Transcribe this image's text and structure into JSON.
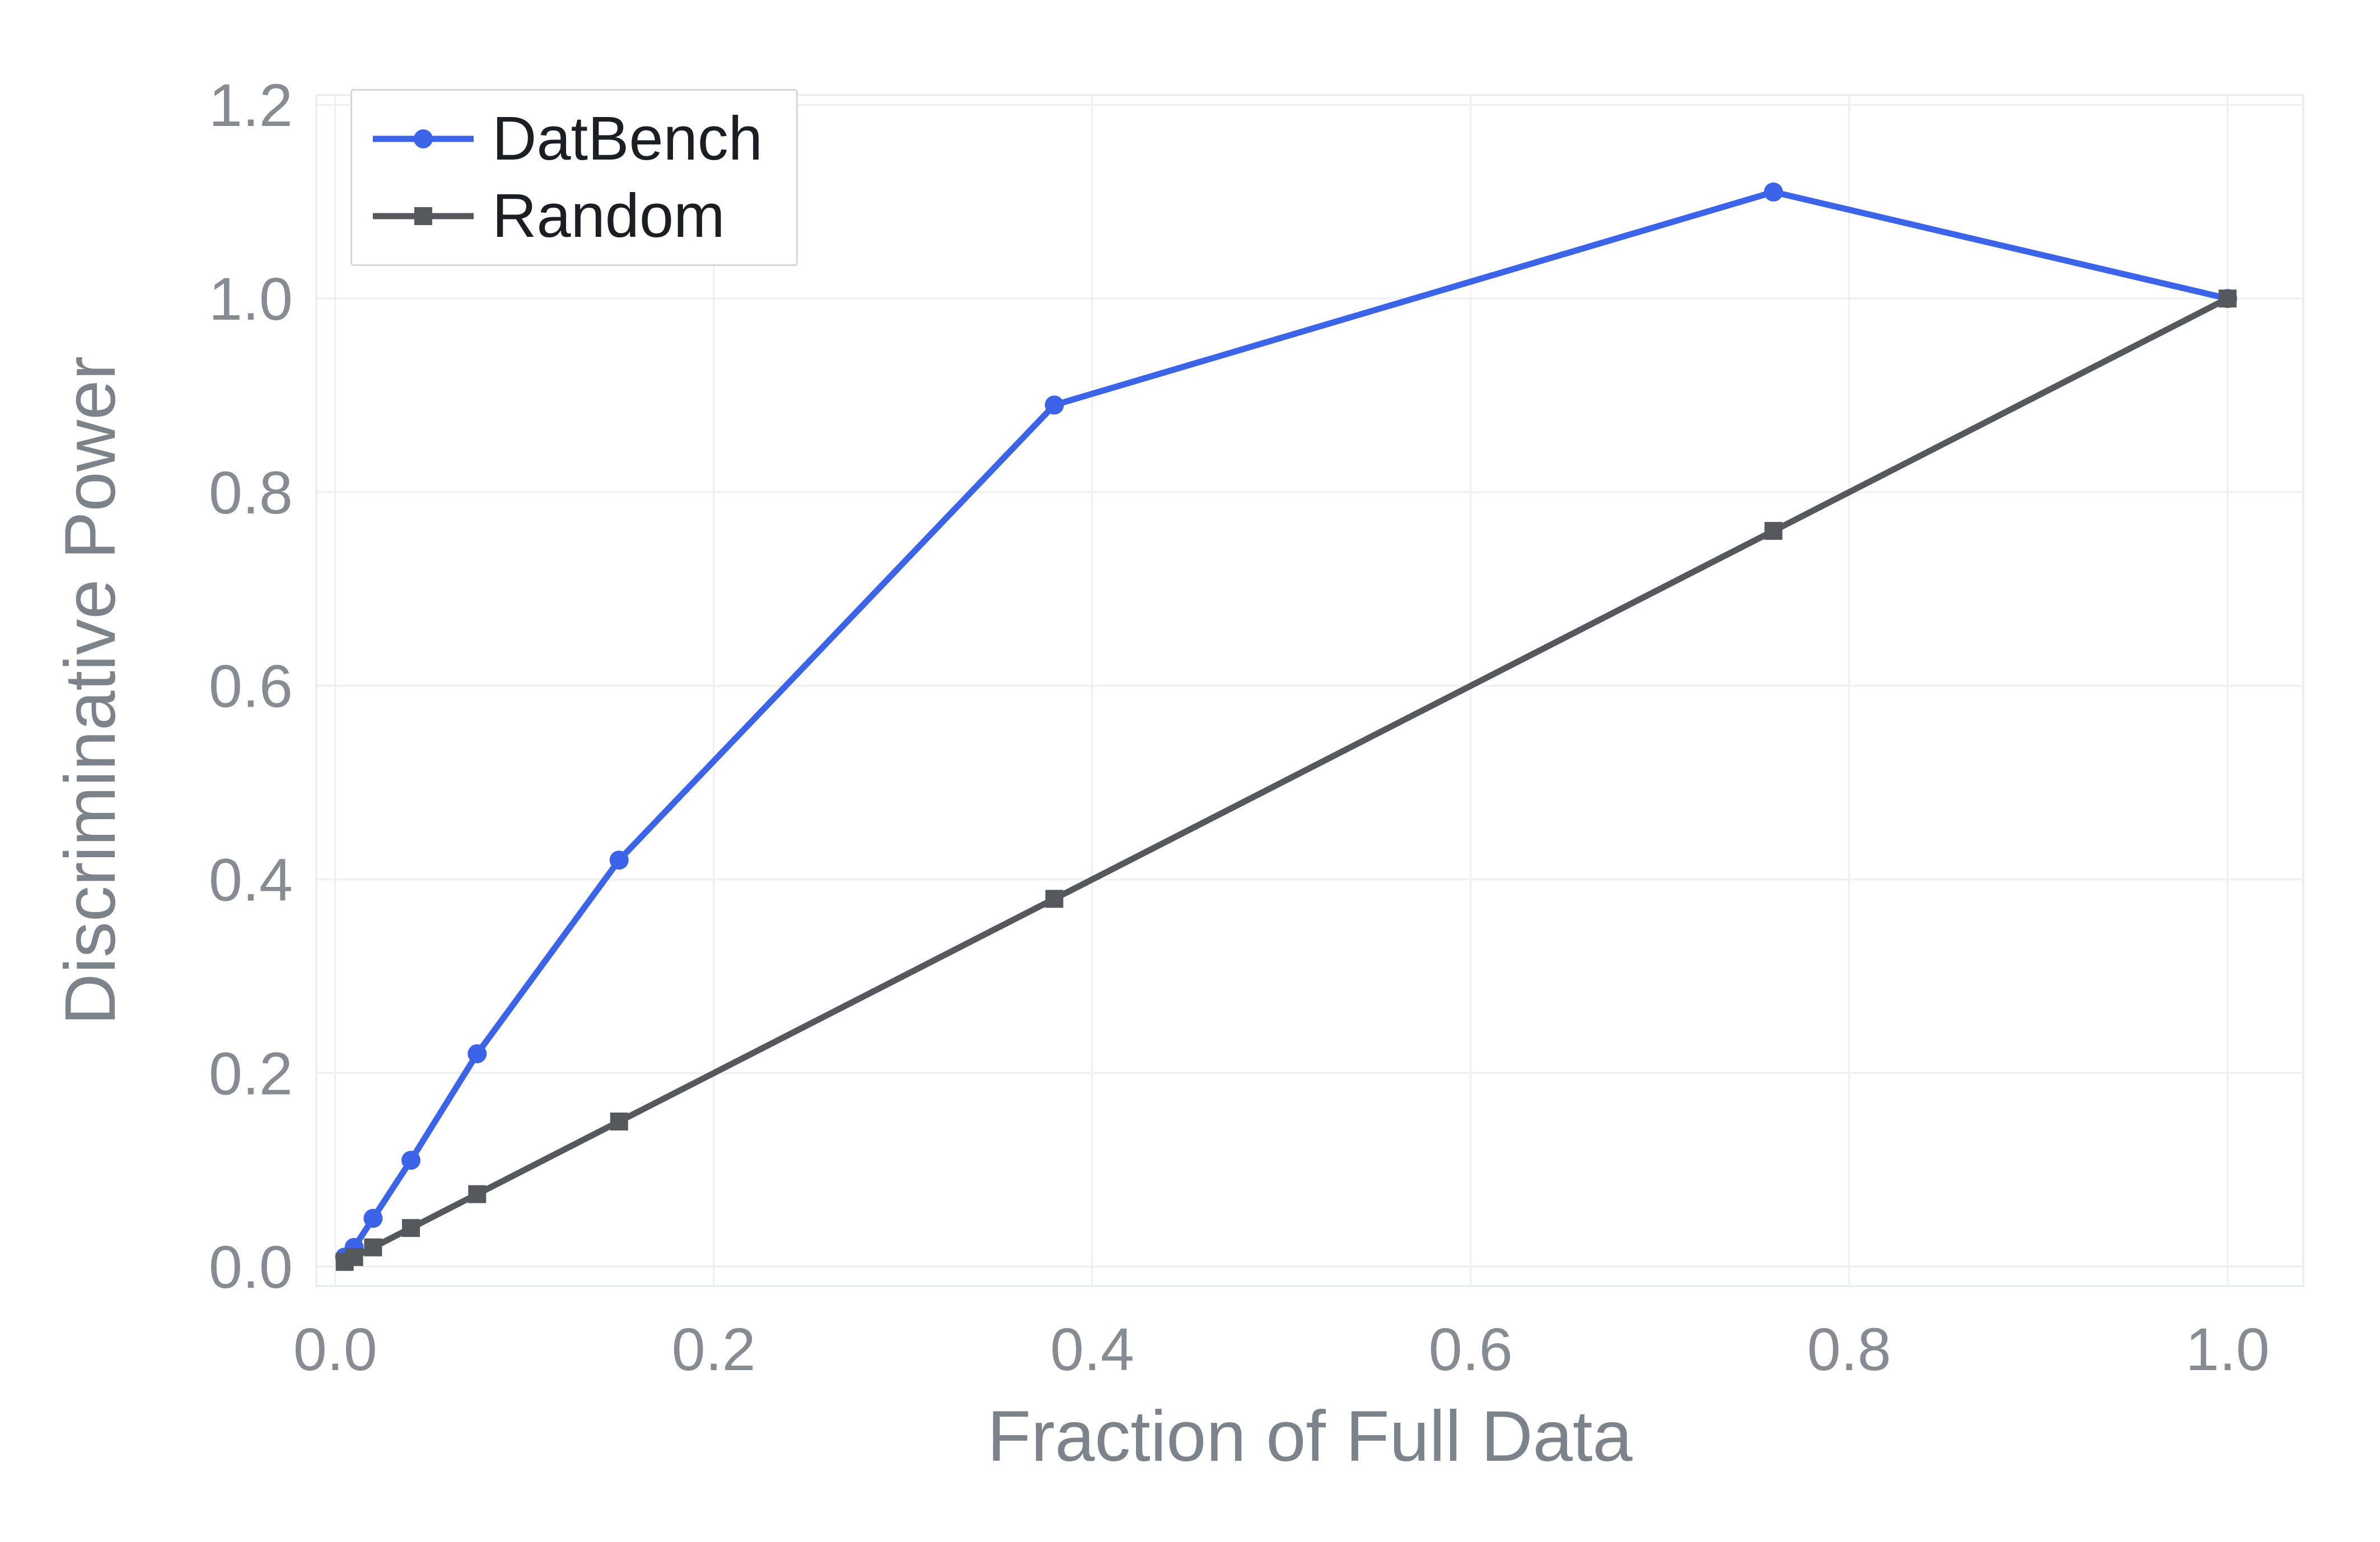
{
  "chart_data": {
    "type": "line",
    "title": "",
    "xlabel": "Fraction of Full Data",
    "ylabel": "Discriminative Power",
    "xlim": [
      -0.01,
      1.04
    ],
    "ylim": [
      -0.02,
      1.21
    ],
    "x_ticks": [
      0,
      0.2,
      0.4,
      0.6,
      0.8,
      1.0
    ],
    "x_tick_labels": [
      "0.0",
      "0.2",
      "0.4",
      "0.6",
      "0.8",
      "1.0"
    ],
    "y_ticks": [
      0,
      0.2,
      0.4,
      0.6,
      0.8,
      1.0,
      1.2
    ],
    "y_tick_labels": [
      "0.0",
      "0.2",
      "0.4",
      "0.6",
      "0.8",
      "1.0",
      "1.2"
    ],
    "grid": true,
    "legend_position": "top-left",
    "series": [
      {
        "name": "DatBench",
        "color": "#3b64e8",
        "marker": "circle",
        "x": [
          0.005,
          0.01,
          0.02,
          0.04,
          0.075,
          0.15,
          0.38,
          0.76,
          1.0
        ],
        "y": [
          0.01,
          0.02,
          0.05,
          0.11,
          0.22,
          0.42,
          0.89,
          1.11,
          1.0
        ]
      },
      {
        "name": "Random",
        "color": "#55595e",
        "marker": "square",
        "x": [
          0.005,
          0.01,
          0.02,
          0.04,
          0.075,
          0.15,
          0.38,
          0.76,
          1.0
        ],
        "y": [
          0.005,
          0.01,
          0.02,
          0.04,
          0.075,
          0.15,
          0.38,
          0.76,
          1.0
        ]
      }
    ]
  },
  "styles": {
    "grid_color": "#edeff2",
    "panel_border_color": "#e7eaee",
    "panel_background": "#ffffff",
    "tick_label_color": "#878c92",
    "axis_title_color": "#7d838a",
    "legend_text_color": "#1b1e22",
    "legend_border_color": "#d5d8db"
  }
}
